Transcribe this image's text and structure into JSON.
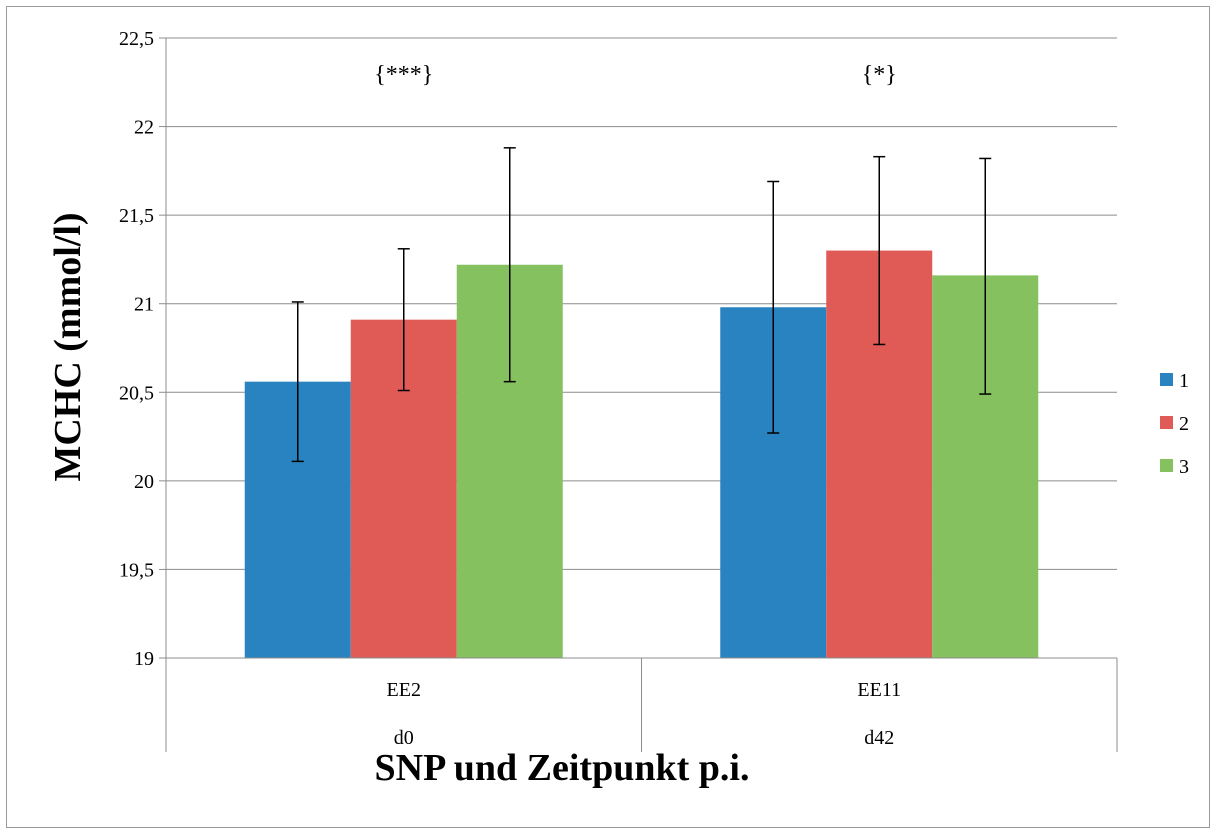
{
  "chart_data": {
    "type": "bar",
    "title": "",
    "xlabel": "SNP und Zeitpunkt p.i.",
    "ylabel": "MCHC (mmol/l)",
    "ylim": [
      19,
      22.5
    ],
    "yticks": [
      {
        "value": 19,
        "label": "19"
      },
      {
        "value": 19.5,
        "label": "19,5"
      },
      {
        "value": 20,
        "label": "20"
      },
      {
        "value": 20.5,
        "label": "20,5"
      },
      {
        "value": 21,
        "label": "21"
      },
      {
        "value": 21.5,
        "label": "21,5"
      },
      {
        "value": 22,
        "label": "22"
      },
      {
        "value": 22.5,
        "label": "22,5"
      }
    ],
    "grid": true,
    "legend_position": "right",
    "categories": [
      {
        "label": "EE2",
        "sublabel": "d0",
        "annotation": "{***}"
      },
      {
        "label": "EE11",
        "sublabel": "d42",
        "annotation": "{*}"
      }
    ],
    "series": [
      {
        "name": "1",
        "color": "#2a83c1",
        "values": [
          20.56,
          20.98
        ],
        "error_low": [
          20.11,
          20.27
        ],
        "error_high": [
          21.01,
          21.69
        ]
      },
      {
        "name": "2",
        "color": "#e15b56",
        "values": [
          20.91,
          21.3
        ],
        "error_low": [
          20.51,
          20.77
        ],
        "error_high": [
          21.31,
          21.83
        ]
      },
      {
        "name": "3",
        "color": "#86c160",
        "values": [
          21.22,
          21.16
        ],
        "error_low": [
          20.56,
          20.49
        ],
        "error_high": [
          21.88,
          21.82
        ]
      }
    ]
  }
}
